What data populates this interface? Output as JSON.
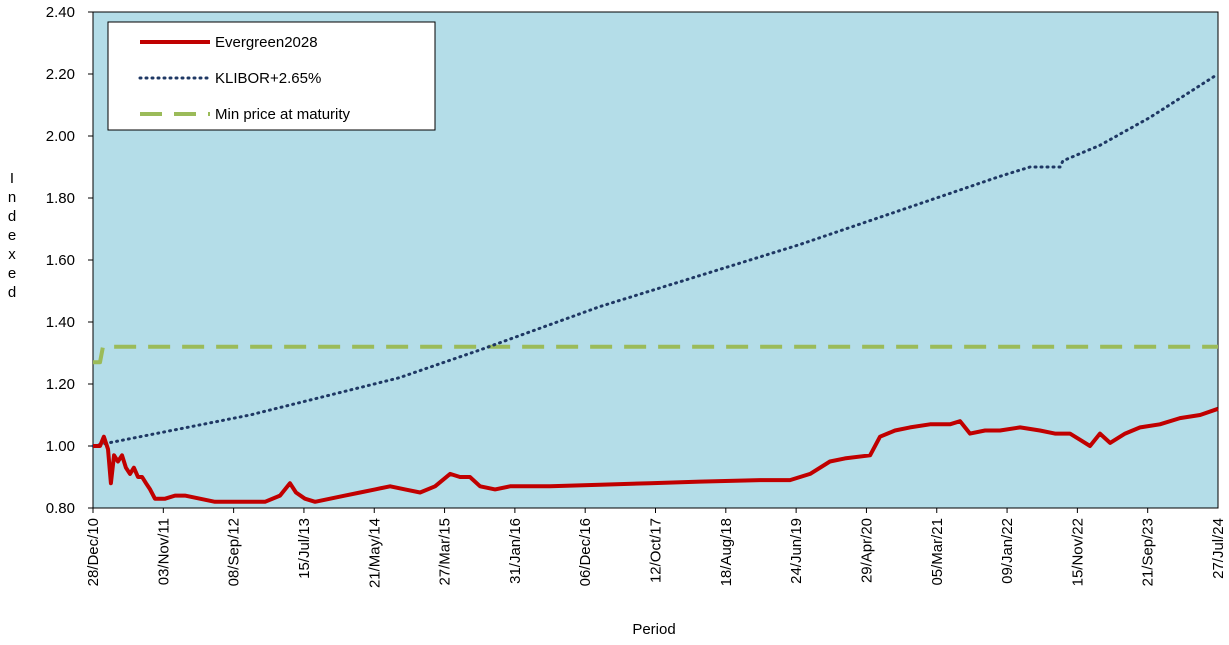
{
  "chart_data": {
    "type": "line",
    "x_label": "Period",
    "y_label": "Indexed",
    "xlim": [
      0,
      4650
    ],
    "ylim": [
      0.8,
      2.4
    ],
    "yticks": [
      {
        "value": 0.8,
        "label": "0.80"
      },
      {
        "value": 1.0,
        "label": "1.00"
      },
      {
        "value": 1.2,
        "label": "1.20"
      },
      {
        "value": 1.4,
        "label": "1.40"
      },
      {
        "value": 1.6,
        "label": "1.60"
      },
      {
        "value": 1.8,
        "label": "1.80"
      },
      {
        "value": 2.0,
        "label": "2.00"
      },
      {
        "value": 2.2,
        "label": "2.20"
      },
      {
        "value": 2.4,
        "label": "2.40"
      }
    ],
    "xticks": [
      {
        "value": 0,
        "label": "28/Dec/10"
      },
      {
        "value": 310,
        "label": "03/Nov/11"
      },
      {
        "value": 620,
        "label": "08/Sep/12"
      },
      {
        "value": 930,
        "label": "15/Jul/13"
      },
      {
        "value": 1240,
        "label": "21/May/14"
      },
      {
        "value": 1550,
        "label": "27/Mar/15"
      },
      {
        "value": 1860,
        "label": "31/Jan/16"
      },
      {
        "value": 2170,
        "label": "06/Dec/16"
      },
      {
        "value": 2480,
        "label": "12/Oct/17"
      },
      {
        "value": 2790,
        "label": "18/Aug/18"
      },
      {
        "value": 3100,
        "label": "24/Jun/19"
      },
      {
        "value": 3410,
        "label": "29/Apr/20"
      },
      {
        "value": 3720,
        "label": "05/Mar/21"
      },
      {
        "value": 4030,
        "label": "09/Jan/22"
      },
      {
        "value": 4340,
        "label": "15/Nov/22"
      },
      {
        "value": 4650,
        "label": "21/Sep/23"
      }
    ],
    "xticks_end_label": "27/Jul/24",
    "legend": "upper left",
    "series": [
      {
        "name": "Evergreen2028",
        "color": "#c00000",
        "style": "solid",
        "x": [
          0,
          29,
          45,
          62,
          74,
          87,
          103,
          120,
          136,
          153,
          169,
          186,
          203,
          219,
          236,
          256,
          298,
          339,
          380,
          442,
          504,
          587,
          649,
          711,
          773,
          814,
          839,
          876,
          918,
          980,
          1042,
          1104,
          1166,
          1228,
          1290,
          1352,
          1414,
          1476,
          1517,
          1558,
          1600,
          1662,
          1724,
          1889,
          2096,
          2302,
          2509,
          2757,
          2881,
          2964,
          3046,
          3108,
          3212,
          3253,
          3315,
          3377,
          3460,
          3542,
          3584,
          3625,
          3687,
          3749,
          3832,
          3914,
          3976,
          4038,
          4080,
          4121,
          4162,
          4204,
          4266,
          4328,
          4410,
          4493,
          4576,
          4650
        ],
        "values": [
          1.0,
          1.0,
          1.03,
          0.99,
          0.88,
          0.97,
          0.95,
          0.97,
          0.93,
          0.91,
          0.93,
          0.9,
          0.9,
          0.88,
          0.86,
          0.83,
          0.83,
          0.84,
          0.84,
          0.83,
          0.82,
          0.82,
          0.82,
          0.82,
          0.84,
          0.88,
          0.85,
          0.83,
          0.82,
          0.83,
          0.84,
          0.85,
          0.86,
          0.87,
          0.86,
          0.85,
          0.87,
          0.91,
          0.9,
          0.9,
          0.87,
          0.86,
          0.87,
          0.87,
          0.875,
          0.88,
          0.885,
          0.89,
          0.89,
          0.91,
          0.95,
          0.96,
          0.97,
          1.03,
          1.05,
          1.06,
          1.07,
          1.07,
          1.08,
          1.04,
          1.05,
          1.05,
          1.06,
          1.05,
          1.04,
          1.04,
          1.02,
          1.0,
          1.04,
          1.01,
          1.04,
          1.06,
          1.07,
          1.09,
          1.1,
          1.12
        ]
      },
      {
        "name": "KLIBOR+2.65%",
        "color": "#1f3864",
        "style": "dotted",
        "x": [
          0,
          649,
          1265,
          1600,
          2096,
          2509,
          2922,
          3336,
          3749,
          3873,
          3997,
          4009,
          4162,
          4369,
          4650
        ],
        "values": [
          1.0,
          1.1,
          1.22,
          1.31,
          1.45,
          1.55,
          1.65,
          1.76,
          1.87,
          1.9,
          1.9,
          1.92,
          1.97,
          2.06,
          2.2
        ]
      },
      {
        "name": "Min price at maturity",
        "color": "#9bbb59",
        "style": "dashed",
        "x": [
          0,
          29,
          41,
          4650
        ],
        "values": [
          1.27,
          1.27,
          1.32,
          1.32
        ]
      }
    ]
  }
}
